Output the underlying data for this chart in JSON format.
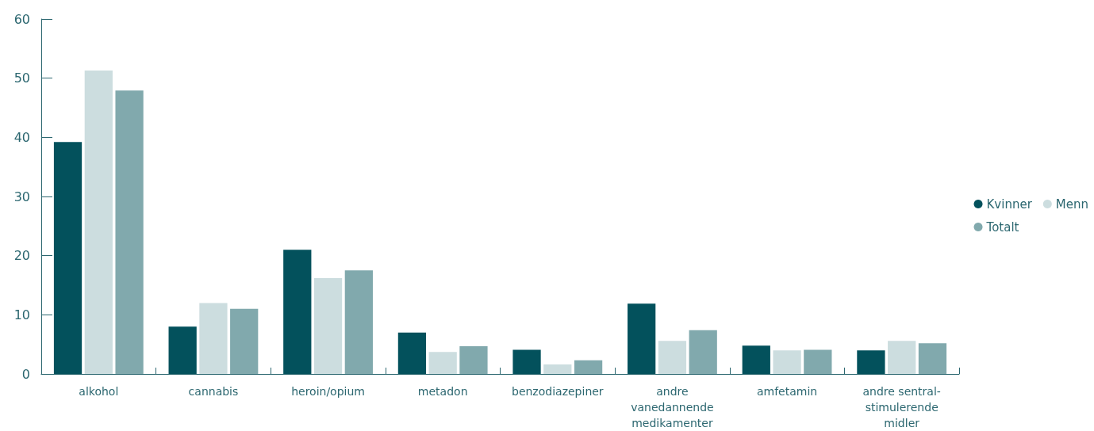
{
  "chart_data": {
    "type": "bar",
    "categories": [
      "alkohol",
      "cannabis",
      "heroin/opium",
      "metadon",
      "benzodiazepiner",
      "andre\nvanedannende\nmedikamenter",
      "amfetamin",
      "andre sentral-\nstimulerende\nmidler"
    ],
    "series": [
      {
        "name": "Kvinner",
        "color": "#03515c",
        "values": [
          39.2,
          8.0,
          21.0,
          7.0,
          4.1,
          11.9,
          4.8,
          4.0
        ]
      },
      {
        "name": "Menn",
        "color": "#ccdddf",
        "values": [
          51.3,
          12.0,
          16.2,
          3.7,
          1.6,
          5.6,
          4.0,
          5.6
        ]
      },
      {
        "name": "Totalt",
        "color": "#81a9ad",
        "values": [
          47.9,
          11.0,
          17.5,
          4.7,
          2.3,
          7.4,
          4.1,
          5.2
        ]
      }
    ],
    "ylim": [
      0,
      60
    ],
    "yticks": [
      0,
      10,
      20,
      30,
      40,
      50,
      60
    ],
    "grid": false,
    "legend": "right"
  }
}
